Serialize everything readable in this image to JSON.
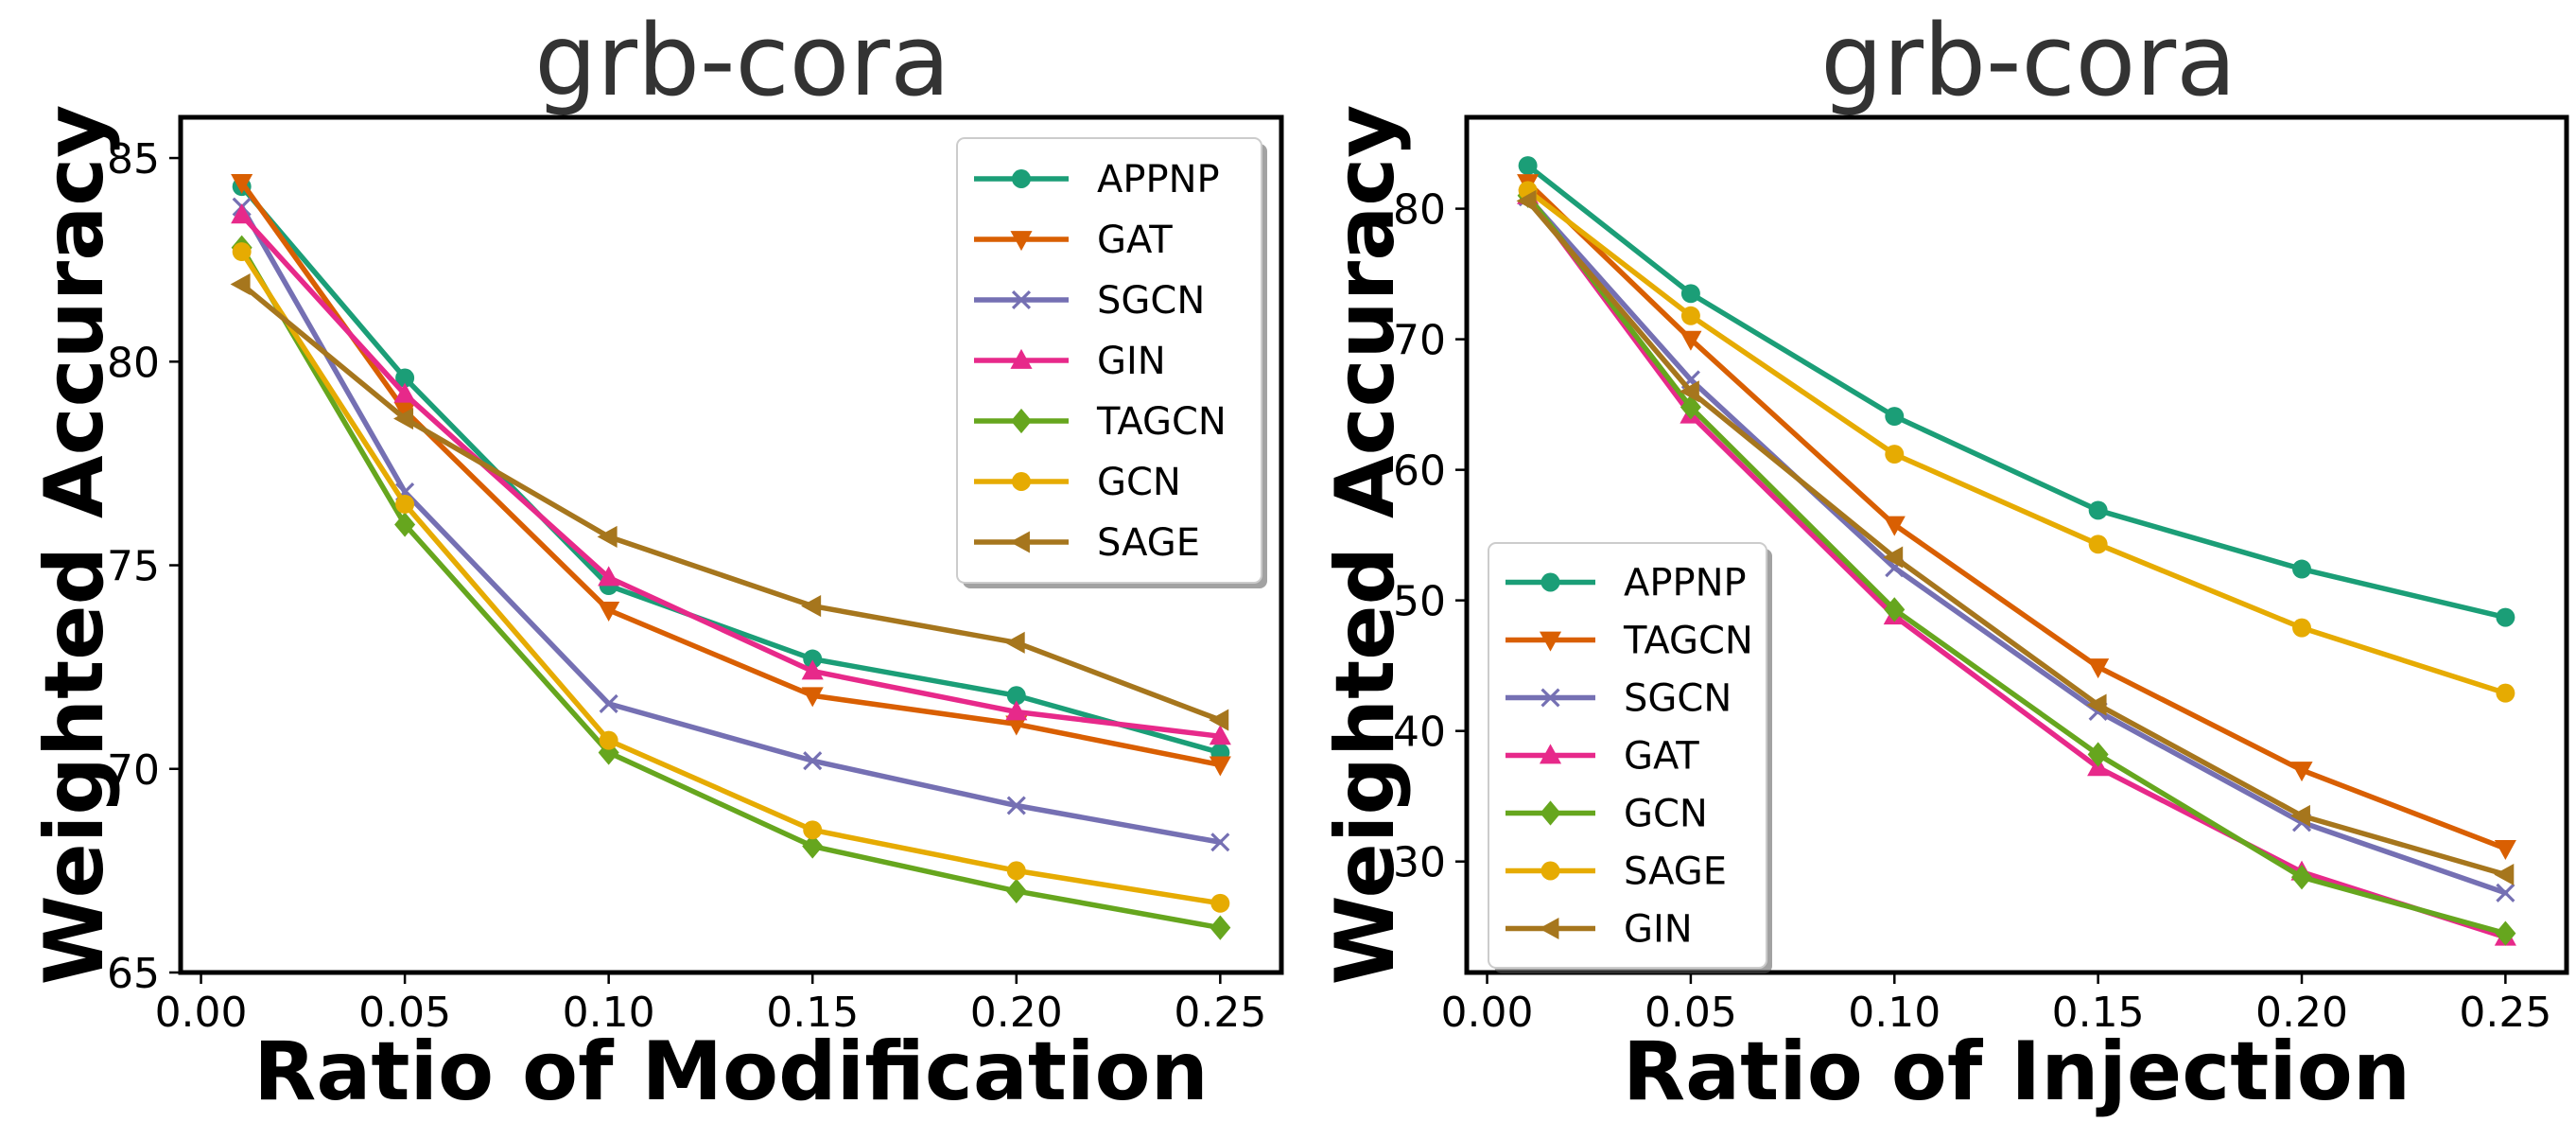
{
  "chart_data": [
    {
      "type": "line",
      "title": "grb-cora",
      "xlabel": "Ratio of Modification",
      "ylabel": "Weighted Accuracy",
      "x": [
        0.01,
        0.05,
        0.1,
        0.15,
        0.2,
        0.25
      ],
      "xlim": [
        -0.005,
        0.265
      ],
      "ylim": [
        65,
        86
      ],
      "xticks": [
        0.0,
        0.05,
        0.1,
        0.15,
        0.2,
        0.25
      ],
      "xtick_labels": [
        "0.00",
        "0.05",
        "0.10",
        "0.15",
        "0.20",
        "0.25"
      ],
      "yticks": [
        65,
        70,
        75,
        80,
        85
      ],
      "ytick_labels": [
        "65",
        "70",
        "75",
        "80",
        "85"
      ],
      "legend_position": "top-right",
      "series": [
        {
          "name": "APPNP",
          "color": "#1b9e77",
          "marker": "circle",
          "values": [
            84.3,
            79.6,
            74.5,
            72.7,
            71.8,
            70.4
          ]
        },
        {
          "name": "GAT",
          "color": "#d95f02",
          "marker": "triangle-down",
          "values": [
            84.4,
            78.8,
            73.9,
            71.8,
            71.1,
            70.1
          ]
        },
        {
          "name": "SGCN",
          "color": "#7570b3",
          "marker": "x",
          "values": [
            83.8,
            76.8,
            71.6,
            70.2,
            69.1,
            68.2
          ]
        },
        {
          "name": "GIN",
          "color": "#e7298a",
          "marker": "triangle-up",
          "values": [
            83.6,
            79.2,
            74.7,
            72.4,
            71.4,
            70.8
          ]
        },
        {
          "name": "TAGCN",
          "color": "#66a61e",
          "marker": "diamond",
          "values": [
            82.8,
            76.0,
            70.4,
            68.1,
            67.0,
            66.1
          ]
        },
        {
          "name": "GCN",
          "color": "#e6ab02",
          "marker": "circle",
          "values": [
            82.7,
            76.5,
            70.7,
            68.5,
            67.5,
            66.7
          ]
        },
        {
          "name": "SAGE",
          "color": "#a6761d",
          "marker": "triangle-left",
          "values": [
            81.9,
            78.6,
            75.7,
            74.0,
            73.1,
            71.2
          ]
        }
      ]
    },
    {
      "type": "line",
      "title": "grb-cora",
      "xlabel": "Ratio of Injection",
      "ylabel": "Weighted Accuracy",
      "x": [
        0.01,
        0.05,
        0.1,
        0.15,
        0.2,
        0.25
      ],
      "xlim": [
        -0.005,
        0.265
      ],
      "ylim": [
        21.5,
        87
      ],
      "xticks": [
        0.0,
        0.05,
        0.1,
        0.15,
        0.2,
        0.25
      ],
      "xtick_labels": [
        "0.00",
        "0.05",
        "0.10",
        "0.15",
        "0.20",
        "0.25"
      ],
      "yticks": [
        30,
        40,
        50,
        60,
        70,
        80
      ],
      "ytick_labels": [
        "30",
        "40",
        "50",
        "60",
        "70",
        "80"
      ],
      "legend_position": "bottom-left",
      "series": [
        {
          "name": "APPNP",
          "color": "#1b9e77",
          "marker": "circle",
          "values": [
            83.3,
            73.5,
            64.1,
            56.9,
            52.4,
            48.7
          ]
        },
        {
          "name": "TAGCN",
          "color": "#d95f02",
          "marker": "triangle-down",
          "values": [
            82.0,
            70.0,
            55.8,
            44.9,
            37.0,
            31.0
          ]
        },
        {
          "name": "SGCN",
          "color": "#7570b3",
          "marker": "x",
          "values": [
            80.9,
            66.9,
            52.5,
            41.5,
            33.0,
            27.6
          ]
        },
        {
          "name": "GAT",
          "color": "#e7298a",
          "marker": "triangle-up",
          "values": [
            81.0,
            64.2,
            48.8,
            37.2,
            29.2,
            24.2
          ]
        },
        {
          "name": "GCN",
          "color": "#66a61e",
          "marker": "diamond",
          "values": [
            81.0,
            64.8,
            49.3,
            38.2,
            28.8,
            24.5
          ]
        },
        {
          "name": "SAGE",
          "color": "#e6ab02",
          "marker": "circle",
          "values": [
            81.4,
            71.8,
            61.2,
            54.3,
            47.9,
            42.9
          ]
        },
        {
          "name": "GIN",
          "color": "#a6761d",
          "marker": "triangle-left",
          "values": [
            80.6,
            66.0,
            53.3,
            42.0,
            33.5,
            29.0
          ]
        }
      ]
    }
  ]
}
